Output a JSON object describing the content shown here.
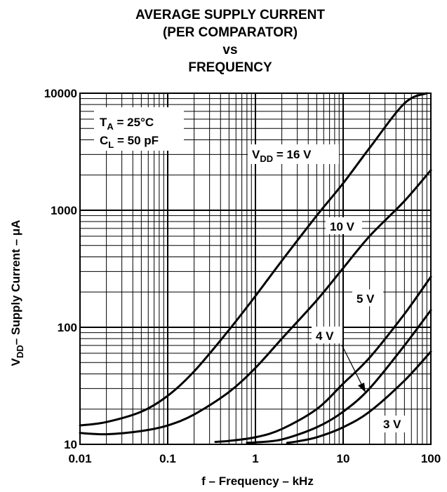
{
  "chart_data": {
    "type": "line",
    "title_lines": [
      "AVERAGE SUPPLY CURRENT",
      "(PER COMPARATOR)",
      "vs",
      "FREQUENCY"
    ],
    "xlabel": "f – Frequency – kHz",
    "ylabel_main": "V",
    "ylabel_sub": "DD",
    "ylabel_rest": "– Supply Current – μA",
    "x_scale": "log",
    "y_scale": "log",
    "xlim": [
      0.01,
      100
    ],
    "ylim": [
      10,
      10000
    ],
    "x_ticks": [
      "0.01",
      "0.1",
      "1",
      "10",
      "100"
    ],
    "y_ticks": [
      "10",
      "100",
      "1000",
      "10000"
    ],
    "grid": true,
    "conditions": {
      "ta_main": "T",
      "ta_sub": "A",
      "ta_val": " = 25°C",
      "cl_main": "C",
      "cl_sub": "L",
      "cl_val": " = 50 pF"
    },
    "series": [
      {
        "name": "V",
        "name_sub": "DD",
        "name_rest": " = 16 V",
        "x": [
          0.01,
          0.02,
          0.05,
          0.1,
          0.2,
          0.5,
          1,
          2,
          5,
          10,
          20,
          50,
          90
        ],
        "y": [
          14.5,
          15.5,
          19,
          26,
          42,
          95,
          185,
          370,
          900,
          1700,
          3400,
          8200,
          10000
        ]
      },
      {
        "name": "10 V",
        "x": [
          0.01,
          0.02,
          0.05,
          0.1,
          0.2,
          0.5,
          1,
          2,
          5,
          10,
          20,
          50,
          100
        ],
        "y": [
          12.5,
          12.2,
          13,
          14.5,
          18,
          28,
          45,
          80,
          170,
          320,
          600,
          1200,
          2200
        ]
      },
      {
        "name": "5 V",
        "x": [
          0.35,
          0.5,
          1,
          2,
          5,
          10,
          20,
          50,
          100
        ],
        "y": [
          10.5,
          10.7,
          11.5,
          13.5,
          20,
          33,
          55,
          130,
          270
        ]
      },
      {
        "name": "4 V",
        "x": [
          0.8,
          1,
          2,
          5,
          10,
          20,
          50,
          100
        ],
        "y": [
          10.3,
          10.4,
          11,
          14,
          19,
          30,
          70,
          140
        ]
      },
      {
        "name": "3 V",
        "x": [
          2.3,
          3,
          5,
          10,
          20,
          50,
          100
        ],
        "y": [
          10.3,
          10.6,
          11.5,
          14,
          19,
          35,
          62
        ]
      }
    ]
  }
}
